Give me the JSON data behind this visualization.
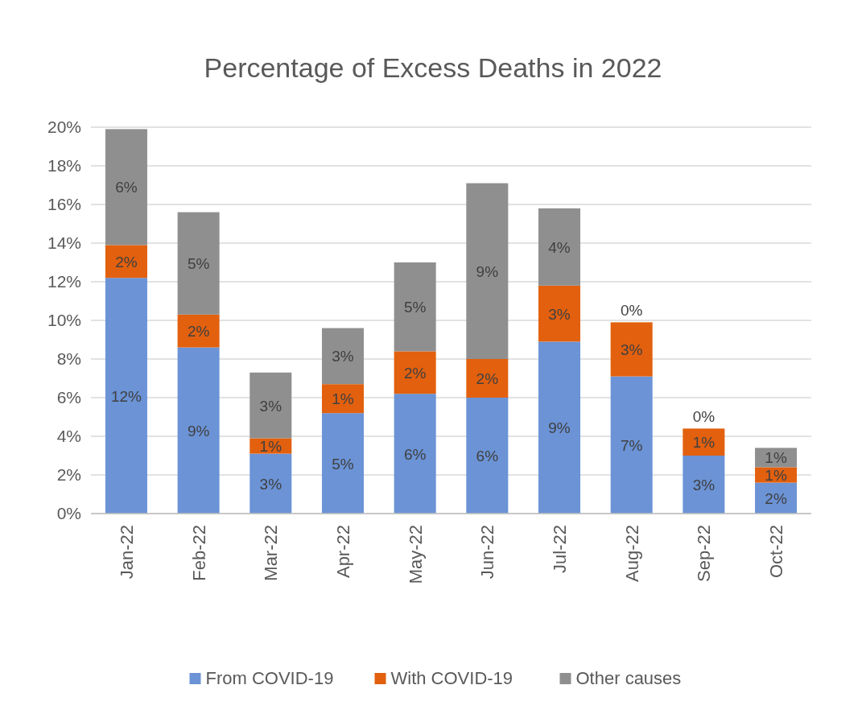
{
  "chart_data": {
    "type": "bar",
    "stacked": true,
    "title": "Percentage of Excess Deaths in 2022",
    "categories": [
      "Jan-22",
      "Feb-22",
      "Mar-22",
      "Apr-22",
      "May-22",
      "Jun-22",
      "Jul-22",
      "Aug-22",
      "Sep-22",
      "Oct-22"
    ],
    "series": [
      {
        "name": "From COVID-19",
        "color": "#6b93d6",
        "values": [
          12.2,
          8.6,
          3.1,
          5.2,
          6.2,
          6.0,
          8.9,
          7.1,
          3.0,
          1.6
        ],
        "value_labels": [
          "12%",
          "9%",
          "3%",
          "5%",
          "6%",
          "6%",
          "9%",
          "7%",
          "3%",
          "2%"
        ]
      },
      {
        "name": "With COVID-19",
        "color": "#e2600e",
        "values": [
          1.7,
          1.7,
          0.8,
          1.5,
          2.2,
          2.0,
          2.9,
          2.8,
          1.4,
          0.8
        ],
        "value_labels": [
          "2%",
          "2%",
          "1%",
          "1%",
          "2%",
          "2%",
          "3%",
          "3%",
          "1%",
          "1%"
        ]
      },
      {
        "name": "Other causes",
        "color": "#8f8f8f",
        "values": [
          6.0,
          5.3,
          3.4,
          2.9,
          4.6,
          9.1,
          4.0,
          0,
          0,
          1.0
        ],
        "value_labels": [
          "6%",
          "5%",
          "3%",
          "3%",
          "5%",
          "9%",
          "4%",
          "0%",
          "0%",
          "1%"
        ]
      }
    ],
    "ylim": [
      0,
      20
    ],
    "yticks": [
      {
        "value": 0,
        "label": "0%"
      },
      {
        "value": 2,
        "label": "2%"
      },
      {
        "value": 4,
        "label": "4%"
      },
      {
        "value": 6,
        "label": "6%"
      },
      {
        "value": 8,
        "label": "8%"
      },
      {
        "value": 10,
        "label": "10%"
      },
      {
        "value": 12,
        "label": "12%"
      },
      {
        "value": 14,
        "label": "14%"
      },
      {
        "value": 16,
        "label": "16%"
      },
      {
        "value": 18,
        "label": "18%"
      },
      {
        "value": 20,
        "label": "20%"
      }
    ],
    "grid": "y",
    "legend": "bottom"
  }
}
